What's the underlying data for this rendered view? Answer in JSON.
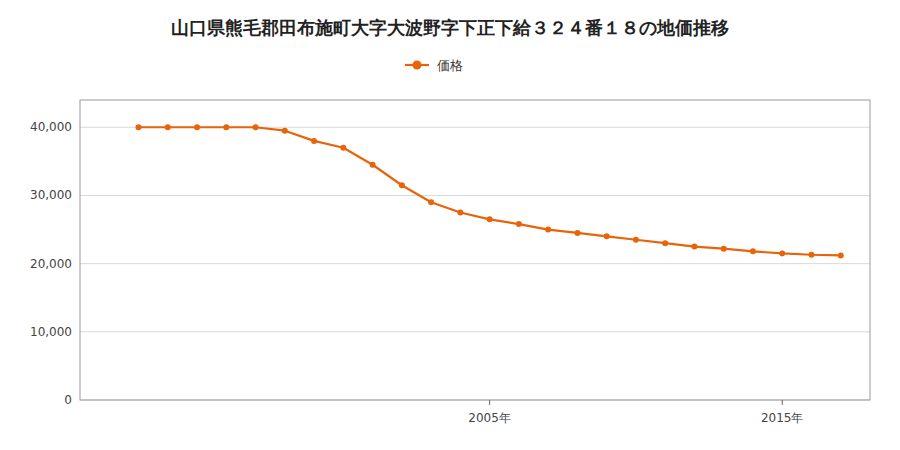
{
  "chart_data": {
    "type": "line",
    "title": "山口県熊毛郡田布施町大字大波野字下正下給３２４番１８の地価推移",
    "x": [
      1993,
      1994,
      1995,
      1996,
      1997,
      1998,
      1999,
      2000,
      2001,
      2002,
      2003,
      2004,
      2005,
      2006,
      2007,
      2008,
      2009,
      2010,
      2011,
      2012,
      2013,
      2014,
      2015,
      2016,
      2017
    ],
    "series": [
      {
        "name": "価格",
        "color": "#e8640a",
        "marker": "circle",
        "values": [
          40000,
          40000,
          40000,
          40000,
          40000,
          39500,
          38000,
          37000,
          34500,
          31500,
          29000,
          27500,
          26500,
          25800,
          25000,
          24500,
          24000,
          23500,
          23000,
          22500,
          22200,
          21800,
          21500,
          21300,
          21200
        ]
      }
    ],
    "xlim": [
      1991,
      2018
    ],
    "ylim": [
      0,
      44000
    ],
    "xticks": [
      {
        "value": 2005,
        "label": "2005年"
      },
      {
        "value": 2015,
        "label": "2015年"
      }
    ],
    "yticks": [
      0,
      {
        "value": 10000,
        "label": "10,000"
      },
      {
        "value": 20000,
        "label": "20,000"
      },
      {
        "value": 30000,
        "label": "30,000"
      },
      {
        "value": 40000,
        "label": "40,000"
      }
    ],
    "grid": true,
    "legend": "top"
  }
}
